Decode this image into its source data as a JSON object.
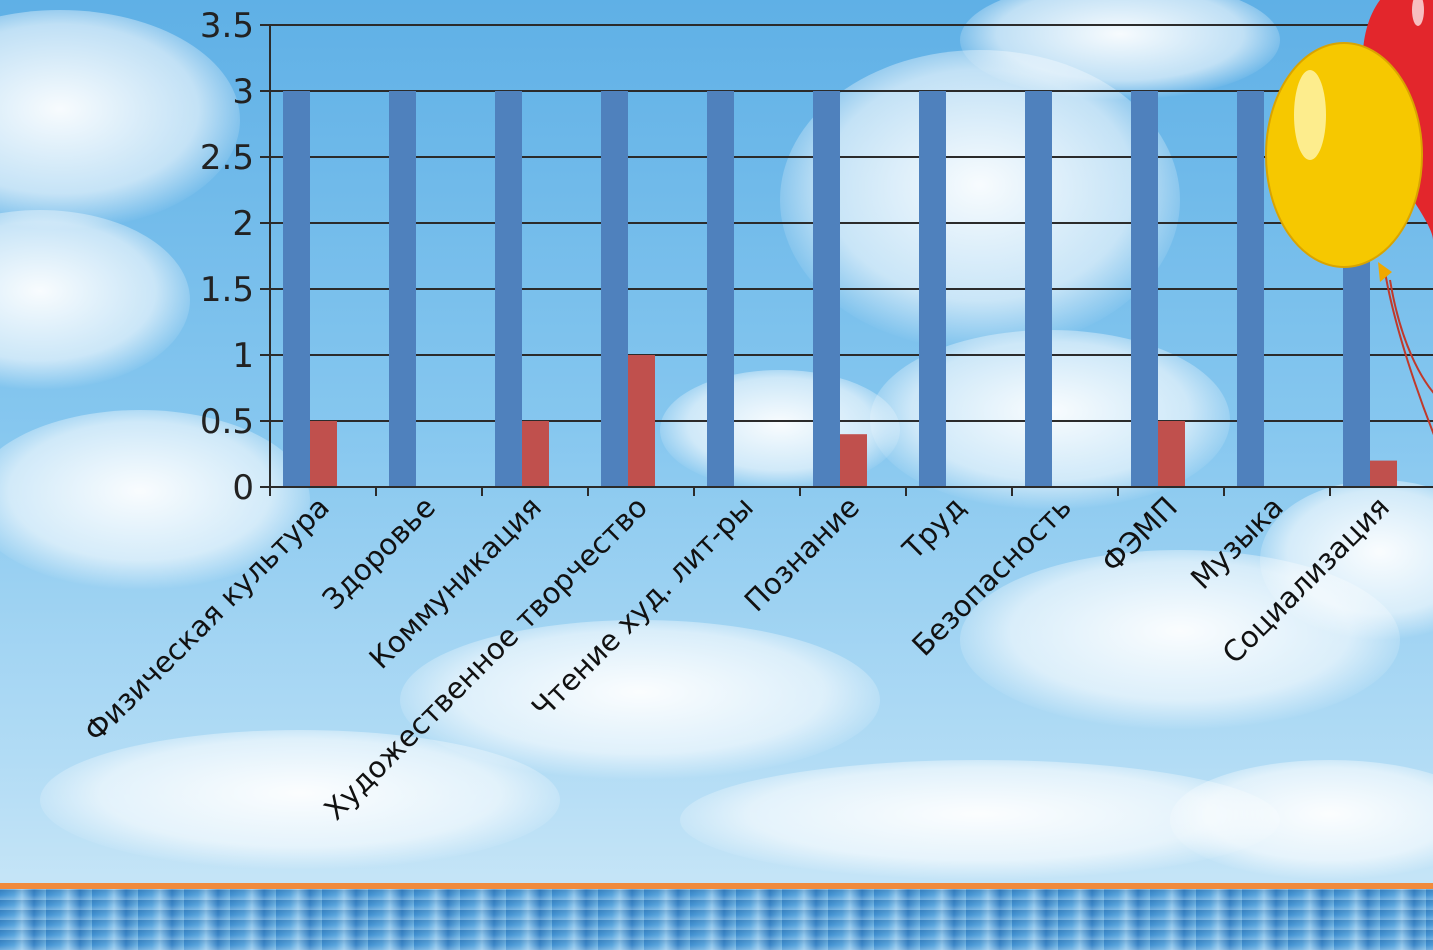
{
  "chart_data": {
    "type": "bar",
    "title": "",
    "xlabel": "",
    "ylabel": "",
    "ylim": [
      0,
      3.5
    ],
    "yticks": [
      "0",
      "0.5",
      "1",
      "1.5",
      "2",
      "2.5",
      "3",
      "3.5"
    ],
    "categories": [
      "Физическая культура",
      "Здоровье",
      "Коммуникация",
      "Художественное творчество",
      "Чтение худ. лит-ры",
      "Познание",
      "Труд",
      "Безопасность",
      "ФЭМП",
      "Музыка",
      "Социализация"
    ],
    "series": [
      {
        "values": [
          3,
          3,
          3,
          3,
          3,
          3,
          3,
          3,
          3,
          3,
          3
        ],
        "color": "#4f81bd"
      },
      {
        "values": [
          0.5,
          0,
          0.5,
          1,
          0,
          0.4,
          0,
          0,
          0.5,
          0,
          0.2
        ],
        "color": "#c0504d"
      }
    ],
    "grid": true,
    "legend": "none"
  },
  "decor": {
    "balloon_colors": [
      "#f6c800",
      "#e3262c"
    ],
    "horizon_color": "#f08a3c"
  }
}
